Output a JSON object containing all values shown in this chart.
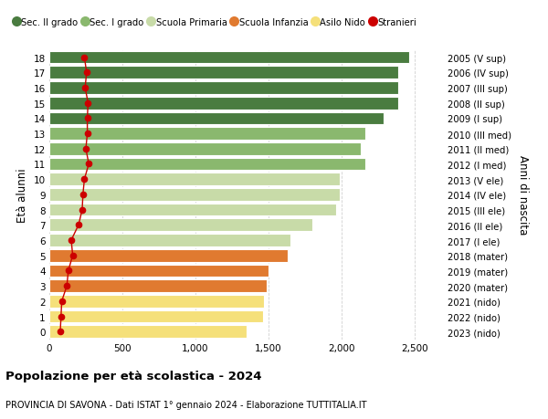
{
  "ages": [
    0,
    1,
    2,
    3,
    4,
    5,
    6,
    7,
    8,
    9,
    10,
    11,
    12,
    13,
    14,
    15,
    16,
    17,
    18
  ],
  "right_labels": [
    "2023 (nido)",
    "2022 (nido)",
    "2021 (nido)",
    "2020 (mater)",
    "2019 (mater)",
    "2018 (mater)",
    "2017 (I ele)",
    "2016 (II ele)",
    "2015 (III ele)",
    "2014 (IV ele)",
    "2013 (V ele)",
    "2012 (I med)",
    "2011 (II med)",
    "2010 (III med)",
    "2009 (I sup)",
    "2008 (II sup)",
    "2007 (III sup)",
    "2006 (IV sup)",
    "2005 (V sup)"
  ],
  "bar_values": [
    1350,
    1460,
    1470,
    1490,
    1500,
    1630,
    1650,
    1800,
    1960,
    1990,
    1990,
    2160,
    2130,
    2160,
    2290,
    2390,
    2390,
    2390,
    2460
  ],
  "stranieri": [
    75,
    80,
    85,
    120,
    130,
    160,
    150,
    200,
    225,
    230,
    240,
    270,
    250,
    260,
    260,
    265,
    245,
    255,
    240
  ],
  "bar_colors": [
    "#f5e07a",
    "#f5e07a",
    "#f5e07a",
    "#e07a30",
    "#e07a30",
    "#e07a30",
    "#c8dba8",
    "#c8dba8",
    "#c8dba8",
    "#c8dba8",
    "#c8dba8",
    "#8ab86e",
    "#8ab86e",
    "#8ab86e",
    "#4a7c40",
    "#4a7c40",
    "#4a7c40",
    "#4a7c40",
    "#4a7c40"
  ],
  "legend_labels": [
    "Sec. II grado",
    "Sec. I grado",
    "Scuola Primaria",
    "Scuola Infanzia",
    "Asilo Nido",
    "Stranieri"
  ],
  "legend_colors": [
    "#4a7c40",
    "#8ab86e",
    "#c8dba8",
    "#e07a30",
    "#f5e07a",
    "#cc0000"
  ],
  "title": "Popolazione per età scolastica - 2024",
  "subtitle": "PROVINCIA DI SAVONA - Dati ISTAT 1° gennaio 2024 - Elaborazione TUTTITALIA.IT",
  "ylabel_left": "Età alunni",
  "ylabel_right": "Anni di nascita",
  "xlim": [
    0,
    2700
  ],
  "xticks": [
    0,
    500,
    1000,
    1500,
    2000,
    2500
  ],
  "xtick_labels": [
    "0",
    "500",
    "1,000",
    "1,500",
    "2,000",
    "2,500"
  ],
  "background_color": "#ffffff",
  "grid_color": "#d0d0d0"
}
